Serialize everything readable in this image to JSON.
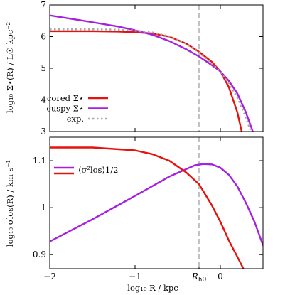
{
  "colors": {
    "cored": "#e8120c",
    "cuspy": "#a520e0",
    "exp": "#a9a9a9",
    "rh0_line": "#9a9a9a"
  },
  "xlabel": "log₁₀ R / kpc",
  "top_ylabel": "log₁₀ Σ⋆(R) / L☉ kpc⁻²",
  "bottom_ylabel": "log₁₀ σlos(R) / km s⁻¹",
  "rh0_label": "Rh0",
  "chart_data": [
    {
      "type": "line",
      "panel": "top",
      "xlim": [
        -2.0,
        0.5
      ],
      "ylim": [
        3,
        7
      ],
      "xticks": [
        -2,
        -1,
        0
      ],
      "yticks": [
        3,
        4,
        5,
        6,
        7
      ],
      "xtick_labels_shown": false,
      "vline_x": -0.25,
      "legend_position": "lower-left",
      "series": [
        {
          "name": "cored Σ⋆",
          "key": "cored",
          "style": "solid",
          "x": [
            -2.0,
            -1.5,
            -1.2,
            -1.0,
            -0.8,
            -0.6,
            -0.4,
            -0.25,
            -0.1,
            0.0,
            0.1,
            0.2,
            0.25
          ],
          "y": [
            6.17,
            6.17,
            6.16,
            6.14,
            6.1,
            6.0,
            5.78,
            5.52,
            5.2,
            4.9,
            4.4,
            3.6,
            3.0
          ]
        },
        {
          "name": "cuspy Σ⋆",
          "key": "cuspy",
          "style": "solid",
          "x": [
            -2.0,
            -1.6,
            -1.2,
            -1.0,
            -0.8,
            -0.6,
            -0.4,
            -0.25,
            -0.1,
            0.0,
            0.1,
            0.2,
            0.3,
            0.38
          ],
          "y": [
            6.67,
            6.5,
            6.32,
            6.2,
            6.06,
            5.86,
            5.6,
            5.37,
            5.1,
            4.9,
            4.6,
            4.2,
            3.6,
            3.0
          ]
        },
        {
          "name": "exp.",
          "key": "exp",
          "style": "dotted",
          "x": [
            -2.0,
            -1.5,
            -1.2,
            -1.0,
            -0.8,
            -0.6,
            -0.4,
            -0.25,
            -0.1,
            0.0,
            0.1,
            0.2,
            0.3,
            0.35
          ],
          "y": [
            6.23,
            6.23,
            6.22,
            6.19,
            6.13,
            6.01,
            5.77,
            5.5,
            5.15,
            4.88,
            4.53,
            4.07,
            3.45,
            3.05
          ]
        }
      ]
    },
    {
      "type": "line",
      "panel": "bottom",
      "xlim": [
        -2.0,
        0.5
      ],
      "ylim": [
        0.87,
        1.15
      ],
      "xticks": [
        -2,
        -1,
        -0.25,
        0
      ],
      "xtick_labels": [
        "−2",
        "−1",
        "Rh0",
        "0"
      ],
      "yticks": [
        0.9,
        1.0,
        1.1
      ],
      "ytick_labels": [
        "0.9",
        "1",
        "1.1"
      ],
      "vline_x": -0.25,
      "legend_position": "upper-left",
      "series": [
        {
          "name": "⟨σ²los⟩1/2",
          "key": "cuspy",
          "style": "solid",
          "x": [
            -2.0,
            -1.5,
            -1.0,
            -0.6,
            -0.4,
            -0.3,
            -0.2,
            -0.1,
            0.0,
            0.1,
            0.2,
            0.3,
            0.4,
            0.5
          ],
          "y": [
            0.928,
            0.975,
            1.025,
            1.066,
            1.082,
            1.09,
            1.093,
            1.092,
            1.085,
            1.07,
            1.045,
            1.01,
            0.97,
            0.92
          ]
        },
        {
          "name": "",
          "key": "cored",
          "style": "solid",
          "x": [
            -2.0,
            -1.5,
            -1.0,
            -0.8,
            -0.6,
            -0.4,
            -0.25,
            -0.1,
            0.0,
            0.1,
            0.2,
            0.27
          ],
          "y": [
            1.128,
            1.128,
            1.122,
            1.114,
            1.1,
            1.075,
            1.05,
            1.005,
            0.97,
            0.93,
            0.895,
            0.87
          ]
        }
      ]
    }
  ]
}
